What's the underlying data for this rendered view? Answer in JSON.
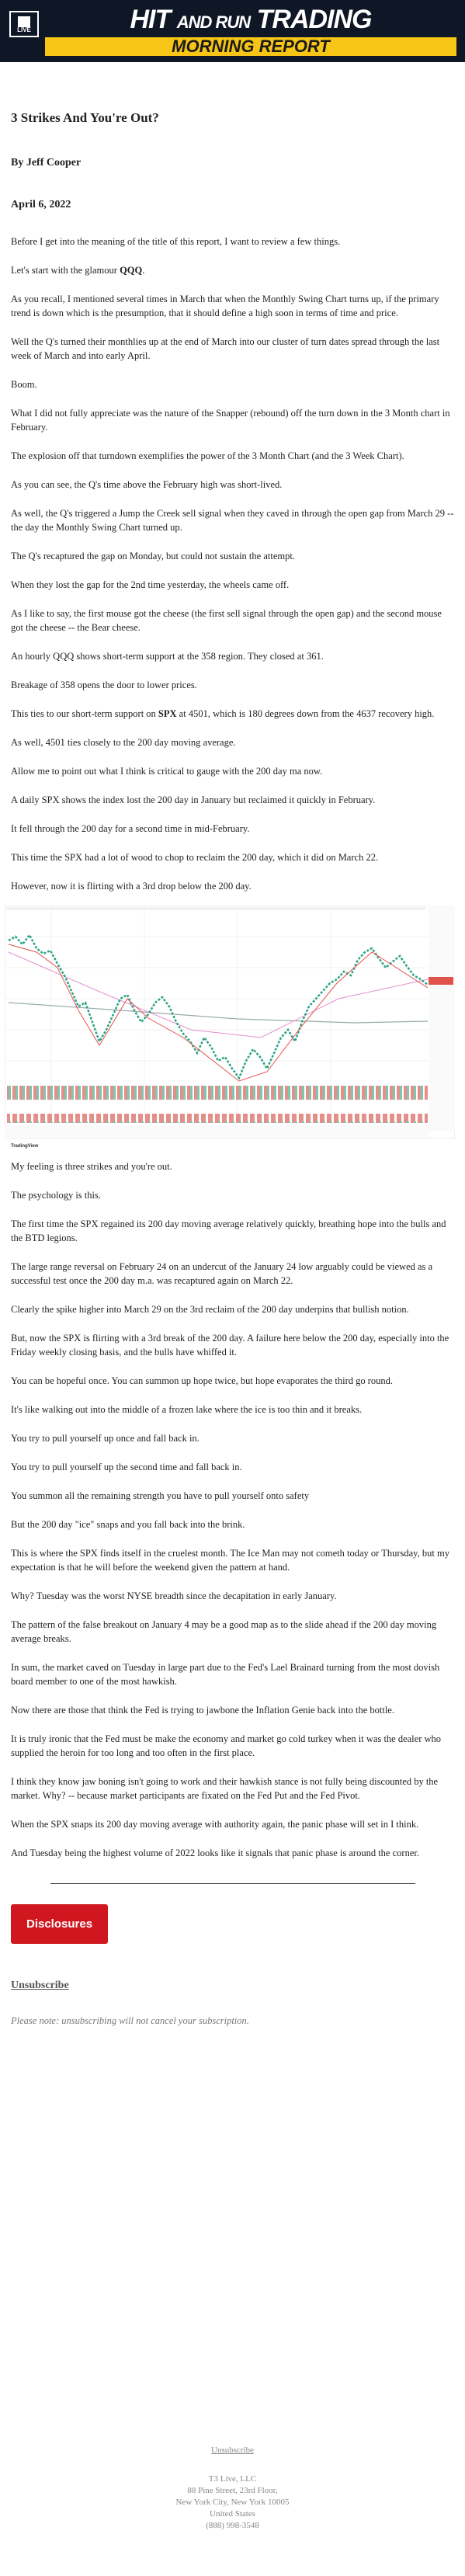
{
  "header": {
    "logo": "LIVE",
    "brand_start": "HIT",
    "brand_middle": "AND RUN",
    "brand_end": "TRADING",
    "banner": "MORNING REPORT"
  },
  "article": {
    "title": "3 Strikes And You're Out?",
    "byline": "By Jeff Cooper",
    "date": "April 6, 2022",
    "paragraphs_before_chart": [
      [
        "Before I get into the meaning of the title of this report, I want to review a few things."
      ],
      [
        "Let's start with the glamour ",
        {
          "text": "QQQ",
          "bold": true
        },
        "."
      ],
      [
        "As you recall, I mentioned several times in March that when the Monthly Swing Chart turns up, if the primary trend is down which is the presumption, that it should define a high soon in terms of time and price."
      ],
      [
        "Well the Q's turned their monthlies up at the end of March into our cluster of turn dates spread through the last week of March and into early April."
      ],
      [
        "Boom."
      ],
      [
        "What I did not fully appreciate was the nature of the Snapper (rebound) off the turn down in the 3 Month chart in February."
      ],
      [
        "The explosion off that turndown exemplifies the power of the 3 Month Chart (and the 3 Week Chart)."
      ],
      [
        "As you can see, the Q's time above the February high was short-lived."
      ],
      [
        "As well, the Q's triggered a Jump the Creek sell signal when they caved in through the open gap from March 29 -- the day the Monthly Swing Chart turned up."
      ],
      [
        "The Q's recaptured the gap on Monday, but could not sustain the attempt."
      ],
      [
        "When they lost the gap for the 2nd time yesterday, the wheels came off."
      ],
      [
        "As I like to say, the first mouse got the cheese (the first sell signal through the open gap) and the second mouse got the cheese -- the Bear cheese."
      ],
      [
        "An hourly QQQ shows short-term support at the 358 region. They closed at 361."
      ],
      [
        "Breakage of 358 opens the door to lower prices."
      ],
      [
        "This ties to our short-term support on ",
        {
          "text": "SPX",
          "bold": true
        },
        " at 4501, which is 180 degrees down from the 4637 recovery high."
      ],
      [
        "As well, 4501 ties closely to the 200 day moving average."
      ],
      [
        "Allow me to point out what I think is critical to gauge with the 200 day ma now."
      ],
      [
        "A daily SPX shows the index lost the 200 day in January but reclaimed it quickly in February."
      ],
      [
        "It fell through the 200 day for a second time in mid-February."
      ],
      [
        "This time the SPX had a lot of wood to chop to reclaim the 200 day, which it did on March 22."
      ],
      [
        "However, now it is flirting with a 3rd drop below the 200 day."
      ]
    ],
    "chart_credit": "TradingView",
    "paragraphs_after_chart": [
      [
        "My feeling is three strikes and you're out."
      ],
      [
        "The psychology is this."
      ],
      [
        "The first time the SPX regained its 200 day moving average relatively quickly, breathing hope into the bulls and the BTD legions."
      ],
      [
        "The large range reversal on February 24 on an undercut of the January 24 low arguably could be viewed as a successful test once the 200 day m.a. was recaptured again on March 22."
      ],
      [
        "Clearly the spike higher into March 29 on the 3rd reclaim of the 200 day underpins that bullish notion."
      ],
      [
        "But, now the SPX is flirting with a 3rd break of the 200 day. A failure here below the 200 day, especially into the Friday weekly closing basis, and the bulls have whiffed it."
      ],
      [
        "You can be hopeful once. You can summon up hope twice, but hope evaporates the third go round."
      ],
      [
        "It's like walking out into the middle of a frozen lake where the ice is too thin and it breaks."
      ],
      [
        "You try to pull yourself up once and fall back in."
      ],
      [
        "You try to pull yourself up the second time and fall back in."
      ],
      [
        "You summon all the remaining strength you have to pull yourself onto safety"
      ],
      [
        "But the 200 day \"ice\" snaps and you fall back into the brink."
      ],
      [
        "This is where the SPX finds itself in the cruelest month. The Ice Man may not cometh today or Thursday, but my expectation is that he will before the weekend given the pattern at hand."
      ],
      [
        "Why? Tuesday was the worst NYSE breadth since the decapitation in early January."
      ],
      [
        "The pattern of the false breakout on January 4 may be a good map as to the slide ahead if the 200 day moving average breaks."
      ],
      [
        "In sum, the market caved on Tuesday in large part due to the Fed's Lael Brainard turning from the most dovish board member to one of the most hawkish."
      ],
      [
        "Now there are those that think the Fed is trying to jawbone the Inflation Genie back into the bottle."
      ],
      [
        "It is truly ironic that the Fed must be make the economy and market go cold turkey when it was the dealer who supplied the heroin for too long and too often in the first place."
      ],
      [
        "I think they know jaw boning isn't going to work and their hawkish stance is not fully being discounted by the market. Why? -- because market participants are fixated on the Fed Put and the Fed Pivot."
      ],
      [
        "When the SPX snaps its 200 day moving average with authority again, the panic phase will set in I think."
      ],
      [
        "And Tuesday being the highest volume of 2022 looks like it signals that panic phase is around the corner."
      ]
    ]
  },
  "actions": {
    "disclosures": "Disclosures",
    "unsubscribe": "Unsubscribe",
    "note": "Please note: unsubscribing will not cancel your subscription."
  },
  "footer": {
    "unsubscribe": "Unsubscribe",
    "lines": [
      "T3 Live, LLC",
      "88 Pine Street, 23rd Floor,",
      "New York City, New York 10005",
      "United States",
      "(888) 998-3548"
    ]
  }
}
